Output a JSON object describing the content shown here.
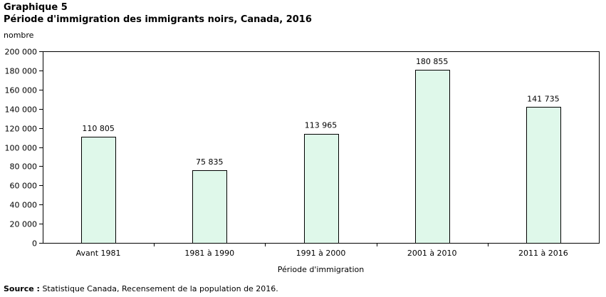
{
  "header": {
    "graph_label": "Graphique  5",
    "title": "Période d'immigration des immigrants noirs, Canada, 2016"
  },
  "source": {
    "label": "Source :",
    "text": "Statistique Canada, Recensement de la population de 2016."
  },
  "chart_data": {
    "type": "bar",
    "title": "Période d'immigration des immigrants noirs, Canada, 2016",
    "ylabel": "nombre",
    "xlabel": "Période d'immigration",
    "categories": [
      "Avant 1981",
      "1981 à 1990",
      "1991 à 2000",
      "2001 à 2010",
      "2011 à 2016"
    ],
    "values": [
      110805,
      75835,
      113965,
      180855,
      141735
    ],
    "value_labels": [
      "110 805",
      "75 835",
      "113 965",
      "180 855",
      "141 735"
    ],
    "ylim": [
      0,
      200000
    ],
    "yticks": [
      0,
      20000,
      40000,
      60000,
      80000,
      100000,
      120000,
      140000,
      160000,
      180000,
      200000
    ],
    "ytick_labels": [
      "0",
      "20 000",
      "40 000",
      "60 000",
      "80 000",
      "100 000",
      "120 000",
      "140 000",
      "160 000",
      "180 000",
      "200 000"
    ],
    "grid": false,
    "bar_fill": "#dff8ea",
    "bar_stroke": "#000000"
  }
}
